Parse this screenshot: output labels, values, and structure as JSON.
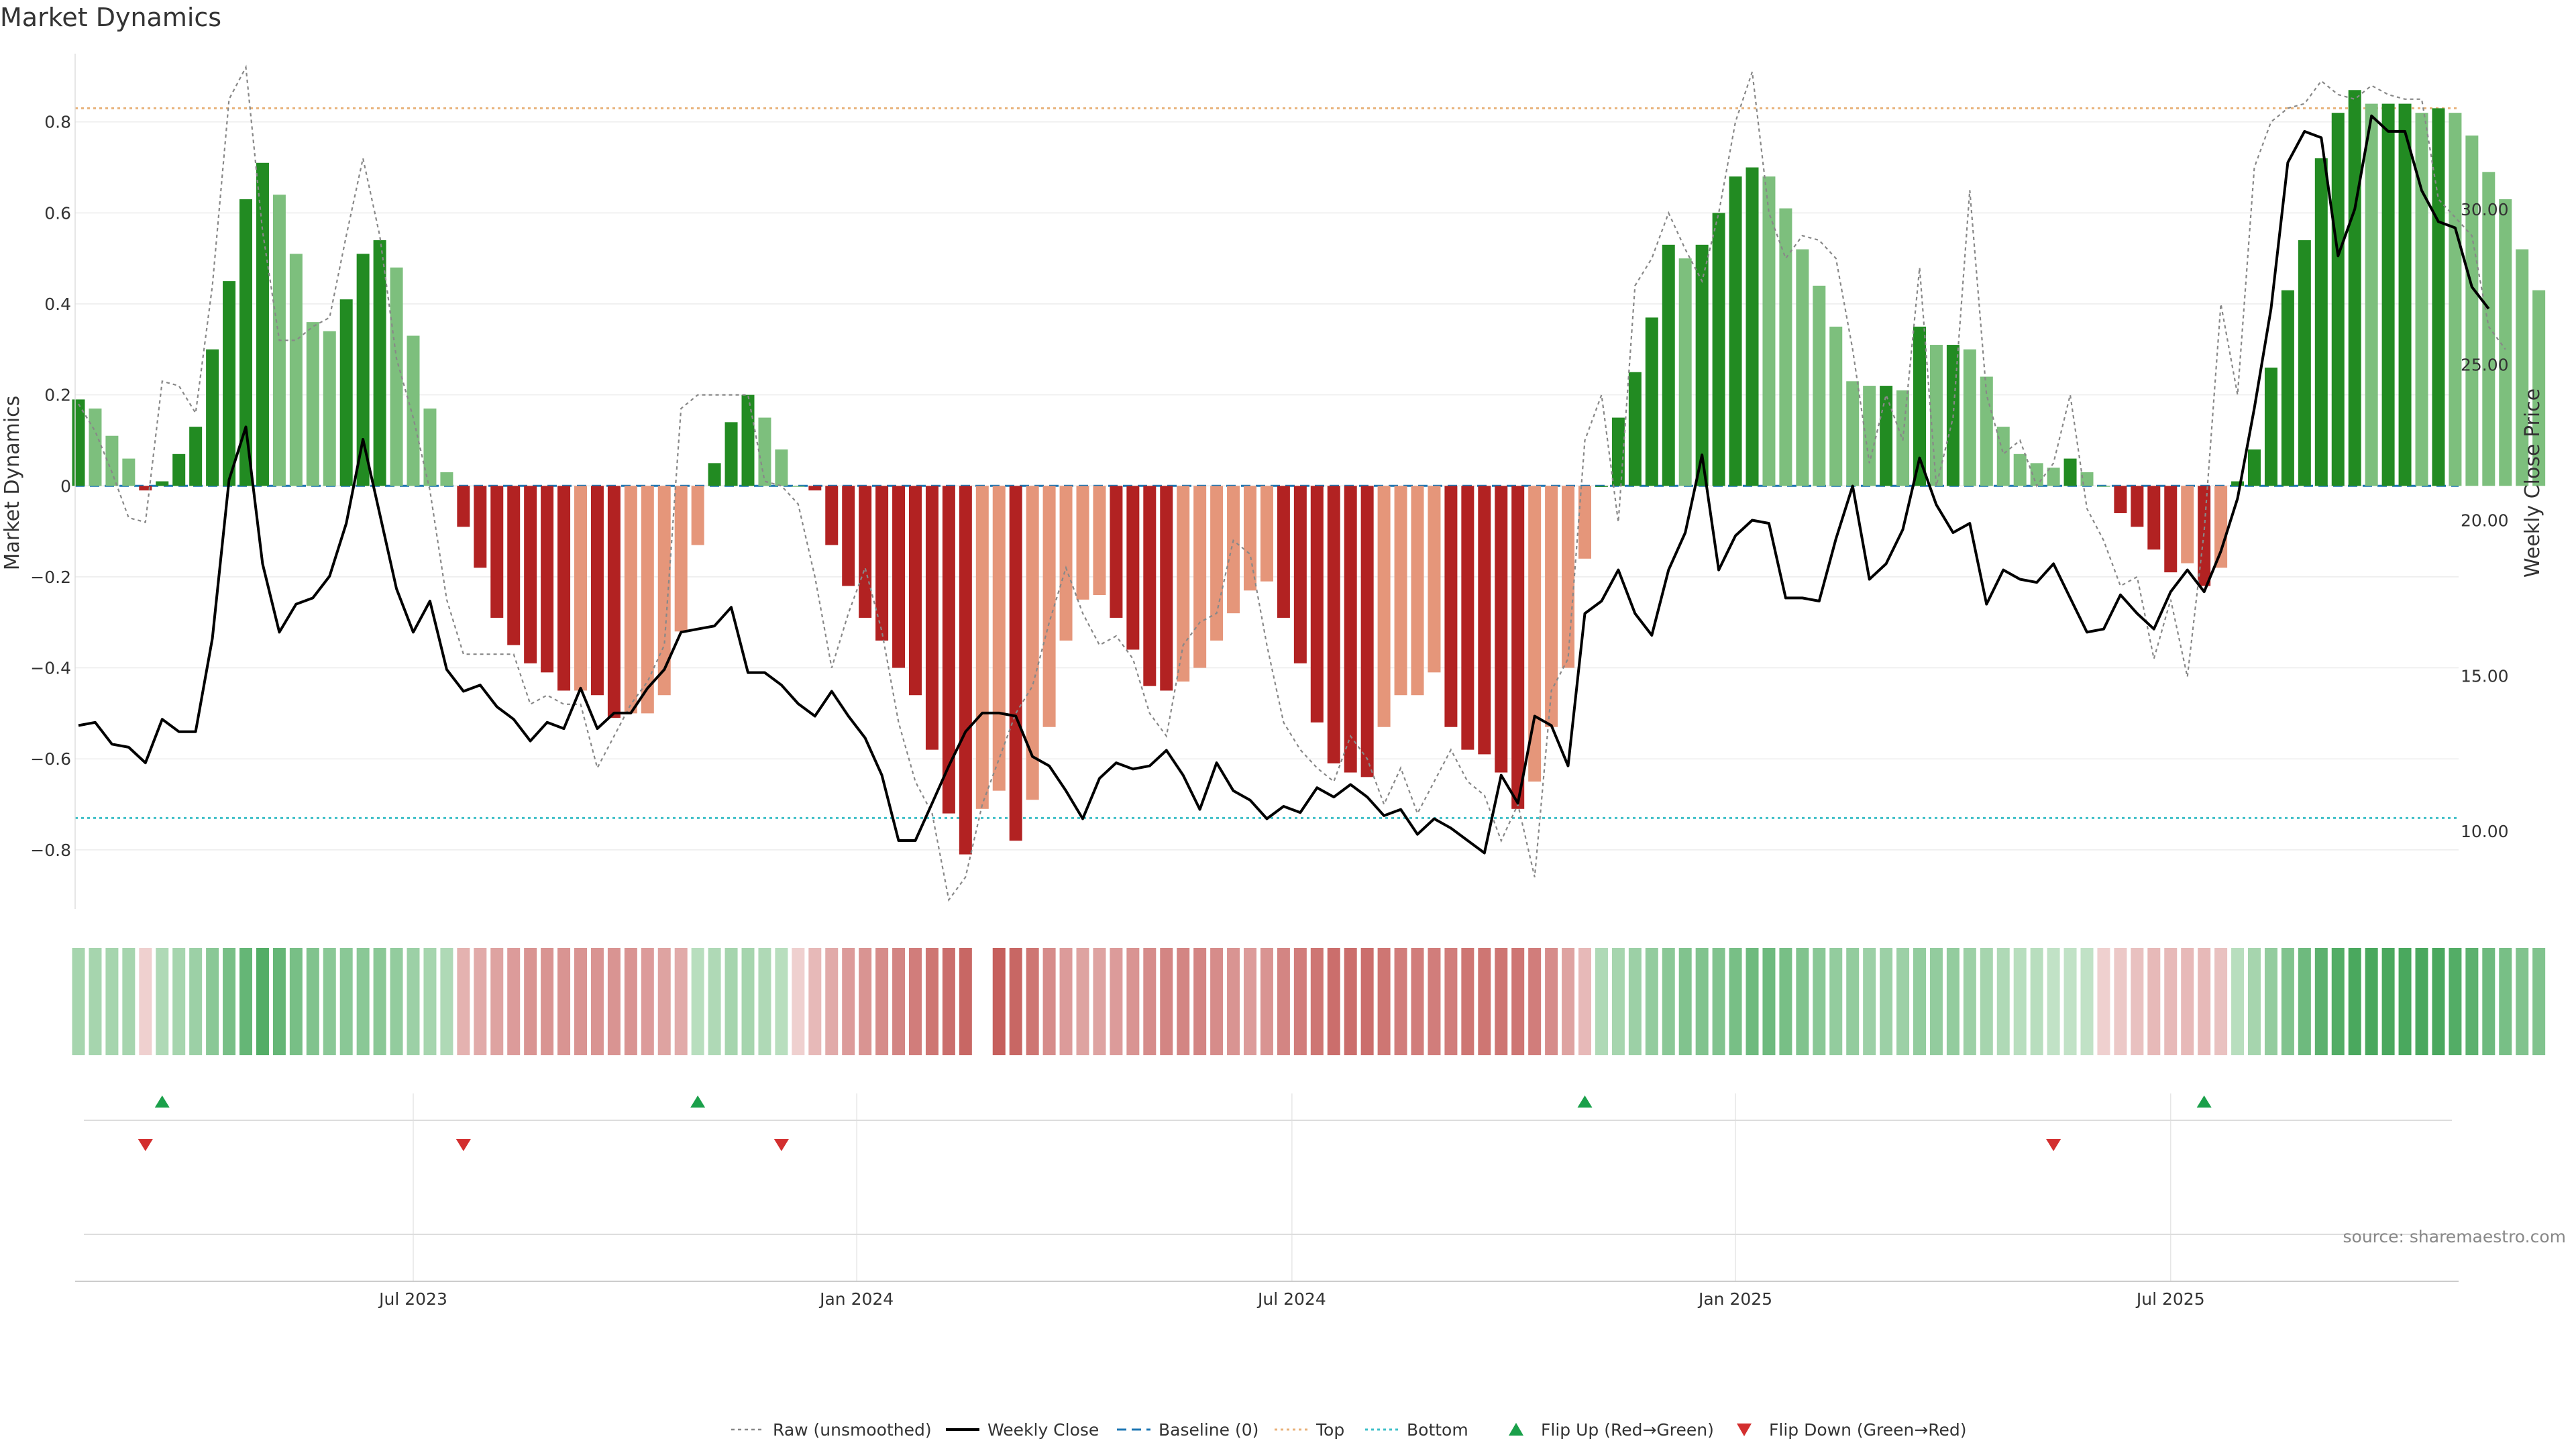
{
  "title": "Market Dynamics",
  "source": "source: sharemaestro.com",
  "colors": {
    "strong_green": "#228b22",
    "light_green": "#7dbf7d",
    "strong_red": "#b22222",
    "light_red": "#e5967a",
    "raw": "#888888",
    "close": "#000000",
    "baseline": "#1f77b4",
    "top": "#e8b27a",
    "bottom": "#40c0c8",
    "flip_up": "#1aa04a",
    "flip_down": "#d32f2f"
  },
  "chart_data": {
    "type": "bar",
    "ylabel_left": "Market Dynamics",
    "ylabel_right": "Weekly Close Price",
    "left_ylim": [
      -0.93,
      0.95
    ],
    "right_ylim": [
      7.5,
      35.0
    ],
    "left_ticks": [
      0.8,
      0.6,
      0.4,
      0.2,
      0,
      -0.2,
      -0.4,
      -0.6,
      -0.8
    ],
    "left_tick_labels": [
      "0.8",
      "0.6",
      "0.4",
      "0.2",
      "0",
      "−0.2",
      "−0.4",
      "−0.6",
      "−0.8"
    ],
    "right_ticks": [
      10,
      15,
      20,
      25,
      30
    ],
    "right_tick_labels": [
      "10.00",
      "15.00",
      "20.00",
      "25.00",
      "30.00"
    ],
    "x_tick_labels": [
      "Jul 2023",
      "Jan 2024",
      "Jul 2024",
      "Jan 2025",
      "Jul 2025"
    ],
    "x_tick_index": [
      20,
      46.5,
      72.5,
      99,
      125
    ],
    "top_line": 0.83,
    "bottom_line": -0.73,
    "baseline": 0,
    "dynamics": [
      0.19,
      0.17,
      0.11,
      0.06,
      -0.01,
      0.01,
      0.07,
      0.13,
      0.3,
      0.45,
      0.63,
      0.71,
      0.64,
      0.51,
      0.36,
      0.34,
      0.41,
      0.51,
      0.54,
      0.48,
      0.33,
      0.17,
      0.03,
      -0.09,
      -0.18,
      -0.29,
      -0.35,
      -0.39,
      -0.41,
      -0.45,
      -0.45,
      -0.46,
      -0.51,
      -0.5,
      -0.5,
      -0.46,
      -0.32,
      -0.13,
      0.05,
      0.14,
      0.2,
      0.15,
      0.08,
      0.0,
      -0.01,
      -0.13,
      -0.22,
      -0.29,
      -0.34,
      -0.4,
      -0.46,
      -0.58,
      -0.72,
      -0.81,
      -0.71,
      -0.67,
      -0.78,
      -0.69,
      -0.53,
      -0.34,
      -0.25,
      -0.24,
      -0.29,
      -0.36,
      -0.44,
      -0.45,
      -0.43,
      -0.4,
      -0.34,
      -0.28,
      -0.23,
      -0.21,
      -0.29,
      -0.39,
      -0.52,
      -0.61,
      -0.63,
      -0.64,
      -0.53,
      -0.46,
      -0.46,
      -0.41,
      -0.53,
      -0.58,
      -0.59,
      -0.63,
      -0.71,
      -0.65,
      -0.53,
      -0.4,
      -0.16,
      0.0,
      0.15,
      0.25,
      0.37,
      0.53,
      0.5,
      0.53,
      0.6,
      0.68,
      0.7,
      0.68,
      0.61,
      0.52,
      0.44,
      0.35,
      0.23,
      0.22,
      0.22,
      0.21,
      0.35,
      0.31,
      0.31,
      0.3,
      0.24,
      0.13,
      0.07,
      0.05,
      0.04,
      0.06,
      0.03,
      0.0,
      -0.06,
      -0.09,
      -0.14,
      -0.19,
      -0.17,
      -0.22,
      -0.18,
      0.01,
      0.08,
      0.26,
      0.43,
      0.54,
      0.72,
      0.82,
      0.87,
      0.84,
      0.84,
      0.84,
      0.82,
      0.83,
      0.82,
      0.77,
      0.69,
      0.63,
      0.52,
      0.43
    ],
    "raw": [
      0.18,
      0.12,
      0.03,
      -0.07,
      -0.08,
      0.23,
      0.22,
      0.16,
      0.44,
      0.85,
      0.92,
      0.56,
      0.32,
      0.32,
      0.35,
      0.37,
      0.55,
      0.72,
      0.55,
      0.28,
      0.15,
      -0.01,
      -0.25,
      -0.37,
      -0.37,
      -0.37,
      -0.37,
      -0.48,
      -0.46,
      -0.48,
      -0.48,
      -0.62,
      -0.55,
      -0.48,
      -0.43,
      -0.35,
      0.17,
      0.2,
      0.2,
      0.2,
      0.2,
      0.01,
      0.0,
      -0.04,
      -0.2,
      -0.4,
      -0.28,
      -0.18,
      -0.32,
      -0.52,
      -0.65,
      -0.72,
      -0.91,
      -0.86,
      -0.7,
      -0.6,
      -0.5,
      -0.44,
      -0.3,
      -0.18,
      -0.28,
      -0.35,
      -0.33,
      -0.38,
      -0.5,
      -0.55,
      -0.35,
      -0.3,
      -0.28,
      -0.12,
      -0.15,
      -0.35,
      -0.52,
      -0.58,
      -0.62,
      -0.65,
      -0.55,
      -0.6,
      -0.7,
      -0.62,
      -0.72,
      -0.65,
      -0.58,
      -0.65,
      -0.68,
      -0.78,
      -0.7,
      -0.86,
      -0.45,
      -0.38,
      0.1,
      0.2,
      -0.08,
      0.44,
      0.5,
      0.6,
      0.52,
      0.45,
      0.6,
      0.8,
      0.91,
      0.6,
      0.5,
      0.55,
      0.54,
      0.5,
      0.3,
      0.05,
      0.2,
      0.1,
      0.48,
      0.0,
      0.15,
      0.65,
      0.2,
      0.07,
      0.1,
      0.0,
      0.05,
      0.2,
      -0.05,
      -0.12,
      -0.22,
      -0.2,
      -0.38,
      -0.25,
      -0.42,
      -0.1,
      0.4,
      0.2,
      0.7,
      0.8,
      0.83,
      0.84,
      0.89,
      0.86,
      0.85,
      0.88,
      0.86,
      0.85,
      0.85,
      0.63,
      0.59,
      0.55,
      0.35,
      0.3
    ],
    "close": [
      13.4,
      13.5,
      12.8,
      12.7,
      12.2,
      13.6,
      13.2,
      13.2,
      16.2,
      21.3,
      23.0,
      18.6,
      16.4,
      17.3,
      17.5,
      18.2,
      19.9,
      22.6,
      20.2,
      17.8,
      16.4,
      17.4,
      15.2,
      14.5,
      14.7,
      14.0,
      13.6,
      12.9,
      13.5,
      13.3,
      14.6,
      13.3,
      13.8,
      13.8,
      14.6,
      15.2,
      16.4,
      16.5,
      16.6,
      17.2,
      15.1,
      15.1,
      14.7,
      14.1,
      13.7,
      14.5,
      13.7,
      13.0,
      11.8,
      9.7,
      9.7,
      10.9,
      12.1,
      13.2,
      13.8,
      13.8,
      13.7,
      12.4,
      12.1,
      11.3,
      10.4,
      11.7,
      12.2,
      12.0,
      12.1,
      12.6,
      11.8,
      10.7,
      12.2,
      11.3,
      11.0,
      10.4,
      10.8,
      10.6,
      11.4,
      11.1,
      11.5,
      11.1,
      10.5,
      10.7,
      9.9,
      10.4,
      10.1,
      9.7,
      9.3,
      11.8,
      10.9,
      13.7,
      13.4,
      12.1,
      17.0,
      17.4,
      18.4,
      17.0,
      16.3,
      18.4,
      19.6,
      22.1,
      18.4,
      19.5,
      20.0,
      19.9,
      17.5,
      17.5,
      17.4,
      19.4,
      21.1,
      18.1,
      18.6,
      19.7,
      22.0,
      20.5,
      19.6,
      19.9,
      17.3,
      18.4,
      18.1,
      18.0,
      18.6,
      17.5,
      16.4,
      16.5,
      17.6,
      17.0,
      16.5,
      17.7,
      18.4,
      17.7,
      19.0,
      20.7,
      23.6,
      26.8,
      31.5,
      32.5,
      32.3,
      28.5,
      30.0,
      33.0,
      32.5,
      32.5,
      30.6,
      29.6,
      29.4,
      27.5,
      26.8
    ],
    "heat": [
      0.35,
      0.35,
      0.35,
      0.35,
      -0.15,
      0.3,
      0.35,
      0.4,
      0.5,
      0.6,
      0.7,
      0.8,
      0.7,
      0.6,
      0.55,
      0.5,
      0.5,
      0.5,
      0.5,
      0.45,
      0.4,
      0.35,
      0.3,
      -0.35,
      -0.4,
      -0.45,
      -0.5,
      -0.55,
      -0.55,
      -0.55,
      -0.55,
      -0.55,
      -0.55,
      -0.55,
      -0.5,
      -0.45,
      -0.4,
      0.25,
      0.3,
      0.35,
      0.35,
      0.3,
      0.25,
      -0.15,
      -0.3,
      -0.4,
      -0.5,
      -0.55,
      -0.6,
      -0.65,
      -0.7,
      -0.75,
      -0.8,
      -0.85,
      null,
      -0.9,
      -0.85,
      -0.75,
      -0.6,
      -0.5,
      -0.45,
      -0.45,
      -0.5,
      -0.55,
      -0.6,
      -0.65,
      -0.65,
      -0.65,
      -0.6,
      -0.55,
      -0.5,
      -0.55,
      -0.65,
      -0.7,
      -0.75,
      -0.8,
      -0.8,
      -0.8,
      -0.75,
      -0.7,
      -0.7,
      -0.7,
      -0.7,
      -0.75,
      -0.75,
      -0.75,
      -0.75,
      -0.7,
      -0.6,
      -0.45,
      -0.3,
      0.3,
      0.35,
      0.4,
      0.45,
      0.5,
      0.55,
      0.55,
      0.55,
      0.6,
      0.65,
      0.65,
      0.6,
      0.55,
      0.5,
      0.45,
      0.45,
      0.4,
      0.4,
      0.4,
      0.45,
      0.45,
      0.45,
      0.4,
      0.35,
      0.3,
      0.25,
      0.25,
      0.2,
      0.2,
      0.2,
      -0.15,
      -0.2,
      -0.25,
      -0.3,
      -0.3,
      -0.3,
      -0.3,
      -0.25,
      0.25,
      0.35,
      0.45,
      0.55,
      0.65,
      0.75,
      0.8,
      0.85,
      0.85,
      0.85,
      0.85,
      0.85,
      0.85,
      0.8,
      0.75,
      0.65,
      0.6,
      0.55,
      0.55
    ],
    "flip_up_index": [
      5,
      37,
      90,
      127
    ],
    "flip_down_index": [
      4,
      23,
      42,
      118
    ],
    "legend": [
      {
        "label": "Raw (unsmoothed)",
        "style": "dotted-gray"
      },
      {
        "label": "Weekly Close",
        "style": "solid-black"
      },
      {
        "label": "Baseline (0)",
        "style": "dashed-blue"
      },
      {
        "label": "Top",
        "style": "dotted-orange"
      },
      {
        "label": "Bottom",
        "style": "dotted-cyan"
      },
      {
        "label": "Flip Up (Red→Green)",
        "style": "triangle-up-green"
      },
      {
        "label": "Flip Down (Green→Red)",
        "style": "triangle-down-red"
      }
    ]
  }
}
